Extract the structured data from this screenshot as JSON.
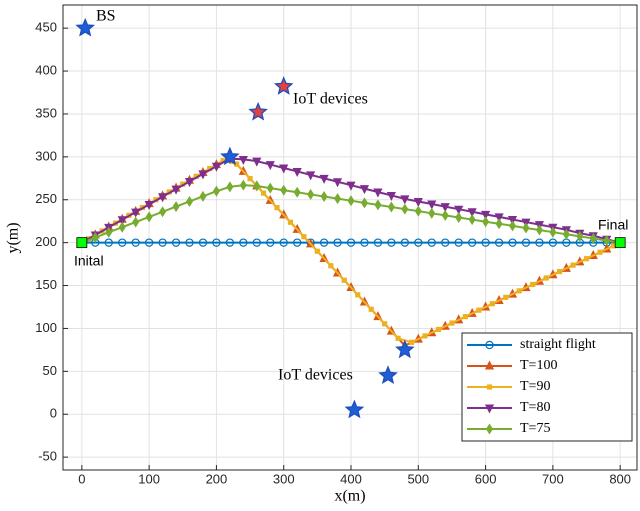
{
  "chart_data": {
    "type": "line",
    "xlabel": "x(m)",
    "ylabel": "y(m)",
    "xlim": [
      -28,
      825
    ],
    "ylim": [
      -65,
      477
    ],
    "xticks": [
      0,
      100,
      200,
      300,
      400,
      500,
      600,
      700,
      800
    ],
    "yticks": [
      -50,
      0,
      50,
      100,
      150,
      200,
      250,
      300,
      350,
      400,
      450
    ],
    "grid": true,
    "legend": "lower right",
    "series": [
      {
        "name": "straight flight",
        "color": "#0072bd",
        "marker": "circle",
        "x": [
          0,
          20,
          40,
          60,
          80,
          100,
          120,
          140,
          160,
          180,
          200,
          220,
          240,
          260,
          280,
          300,
          320,
          340,
          360,
          380,
          400,
          420,
          440,
          460,
          480,
          500,
          520,
          540,
          560,
          580,
          600,
          620,
          640,
          660,
          680,
          700,
          720,
          740,
          760,
          780,
          800
        ],
        "values": [
          200,
          200,
          200,
          200,
          200,
          200,
          200,
          200,
          200,
          200,
          200,
          200,
          200,
          200,
          200,
          200,
          200,
          200,
          200,
          200,
          200,
          200,
          200,
          200,
          200,
          200,
          200,
          200,
          200,
          200,
          200,
          200,
          200,
          200,
          200,
          200,
          200,
          200,
          200,
          200,
          200
        ]
      },
      {
        "name": "T=100",
        "color": "#d95319",
        "marker": "triangle-up",
        "x": [
          0,
          20,
          40,
          60,
          80,
          100,
          120,
          140,
          160,
          180,
          200,
          220,
          240,
          260,
          280,
          300,
          320,
          340,
          360,
          380,
          400,
          420,
          440,
          460,
          480,
          500,
          520,
          540,
          560,
          580,
          600,
          620,
          640,
          660,
          680,
          700,
          720,
          740,
          760,
          780,
          800
        ],
        "values": [
          200,
          209.1,
          218.2,
          227.3,
          236.4,
          245.5,
          254.5,
          263.6,
          272.7,
          281.8,
          290.9,
          300,
          283.1,
          266.2,
          249.2,
          232.3,
          215.4,
          198.5,
          181.5,
          164.6,
          147.7,
          130.8,
          113.8,
          96.9,
          80,
          87.5,
          95,
          102.5,
          110,
          117.5,
          125,
          132.5,
          140,
          147.5,
          155,
          162.5,
          170,
          177.5,
          185,
          192.5,
          200
        ]
      },
      {
        "name": "T=90",
        "color": "#edb120",
        "marker": "square",
        "x": [
          0,
          10,
          30,
          50,
          70,
          90,
          110,
          130,
          150,
          170,
          190,
          210,
          230,
          250,
          270,
          290,
          310,
          330,
          350,
          370,
          390,
          410,
          430,
          450,
          470,
          490,
          510,
          530,
          550,
          570,
          590,
          610,
          630,
          650,
          670,
          690,
          710,
          730,
          750,
          770,
          790,
          800
        ],
        "values": [
          200,
          204.5,
          213.6,
          222.7,
          231.8,
          240.9,
          250,
          259.1,
          268.2,
          277.3,
          286.4,
          295.5,
          291.5,
          274.6,
          257.7,
          240.8,
          223.8,
          206.9,
          190,
          173.1,
          156.2,
          139.2,
          122.3,
          105.4,
          88.5,
          83.8,
          91.3,
          98.8,
          106.3,
          113.8,
          121.3,
          128.8,
          136.3,
          143.8,
          151.3,
          158.8,
          166.3,
          173.8,
          181.3,
          188.8,
          196.3,
          200
        ]
      },
      {
        "name": "T=80",
        "color": "#7e2f8e",
        "marker": "triangle-down",
        "x": [
          0,
          20,
          40,
          60,
          80,
          100,
          120,
          140,
          160,
          180,
          200,
          220,
          240,
          260,
          280,
          300,
          320,
          340,
          360,
          380,
          400,
          420,
          440,
          460,
          480,
          500,
          520,
          540,
          560,
          580,
          600,
          620,
          640,
          660,
          680,
          700,
          720,
          740,
          760,
          780,
          800
        ],
        "values": [
          200,
          208.9,
          217.8,
          226.7,
          235.6,
          244.5,
          253.5,
          262.4,
          271.3,
          280.2,
          289.1,
          298,
          297,
          295,
          291,
          287,
          283,
          279,
          275,
          271,
          267,
          263,
          259,
          255,
          251,
          248,
          245,
          242,
          239,
          236,
          233,
          230,
          227,
          224,
          221,
          218,
          215,
          211,
          208,
          204,
          200
        ]
      },
      {
        "name": "T=75",
        "color": "#77ac30",
        "marker": "diamond",
        "x": [
          0,
          20,
          40,
          60,
          80,
          100,
          120,
          140,
          160,
          180,
          200,
          220,
          240,
          260,
          280,
          300,
          320,
          340,
          360,
          380,
          400,
          420,
          440,
          460,
          480,
          500,
          520,
          540,
          560,
          580,
          600,
          620,
          640,
          660,
          680,
          700,
          720,
          740,
          760,
          780,
          800
        ],
        "values": [
          200,
          206,
          212,
          218,
          224,
          230,
          236,
          242,
          248,
          254,
          260,
          265,
          267,
          266,
          263.6,
          261.1,
          258.7,
          256.2,
          253.8,
          251.3,
          248.9,
          246.4,
          244,
          241.6,
          239.1,
          236.7,
          234.2,
          231.8,
          229.3,
          226.9,
          224.4,
          222,
          219.6,
          217.1,
          214.7,
          212.2,
          209.8,
          207.3,
          204.9,
          202.4,
          200
        ]
      }
    ],
    "stars": {
      "x": [
        5,
        300,
        262,
        220,
        480,
        455,
        405
      ],
      "y": [
        450,
        382,
        352,
        300,
        75,
        45,
        5
      ],
      "colors": [
        "#1f5fd6",
        "#e8403a",
        "#e8403a",
        "#1f5fd6",
        "#1f5fd6",
        "#1f5fd6",
        "#1f5fd6"
      ]
    },
    "endpoints": {
      "labels": [
        "Inital",
        "Final"
      ],
      "x": [
        0,
        800
      ],
      "y": [
        200,
        200
      ],
      "color": "#00ff00"
    },
    "annotations": [
      "BS",
      "IoT devices",
      "IoT devices"
    ]
  }
}
